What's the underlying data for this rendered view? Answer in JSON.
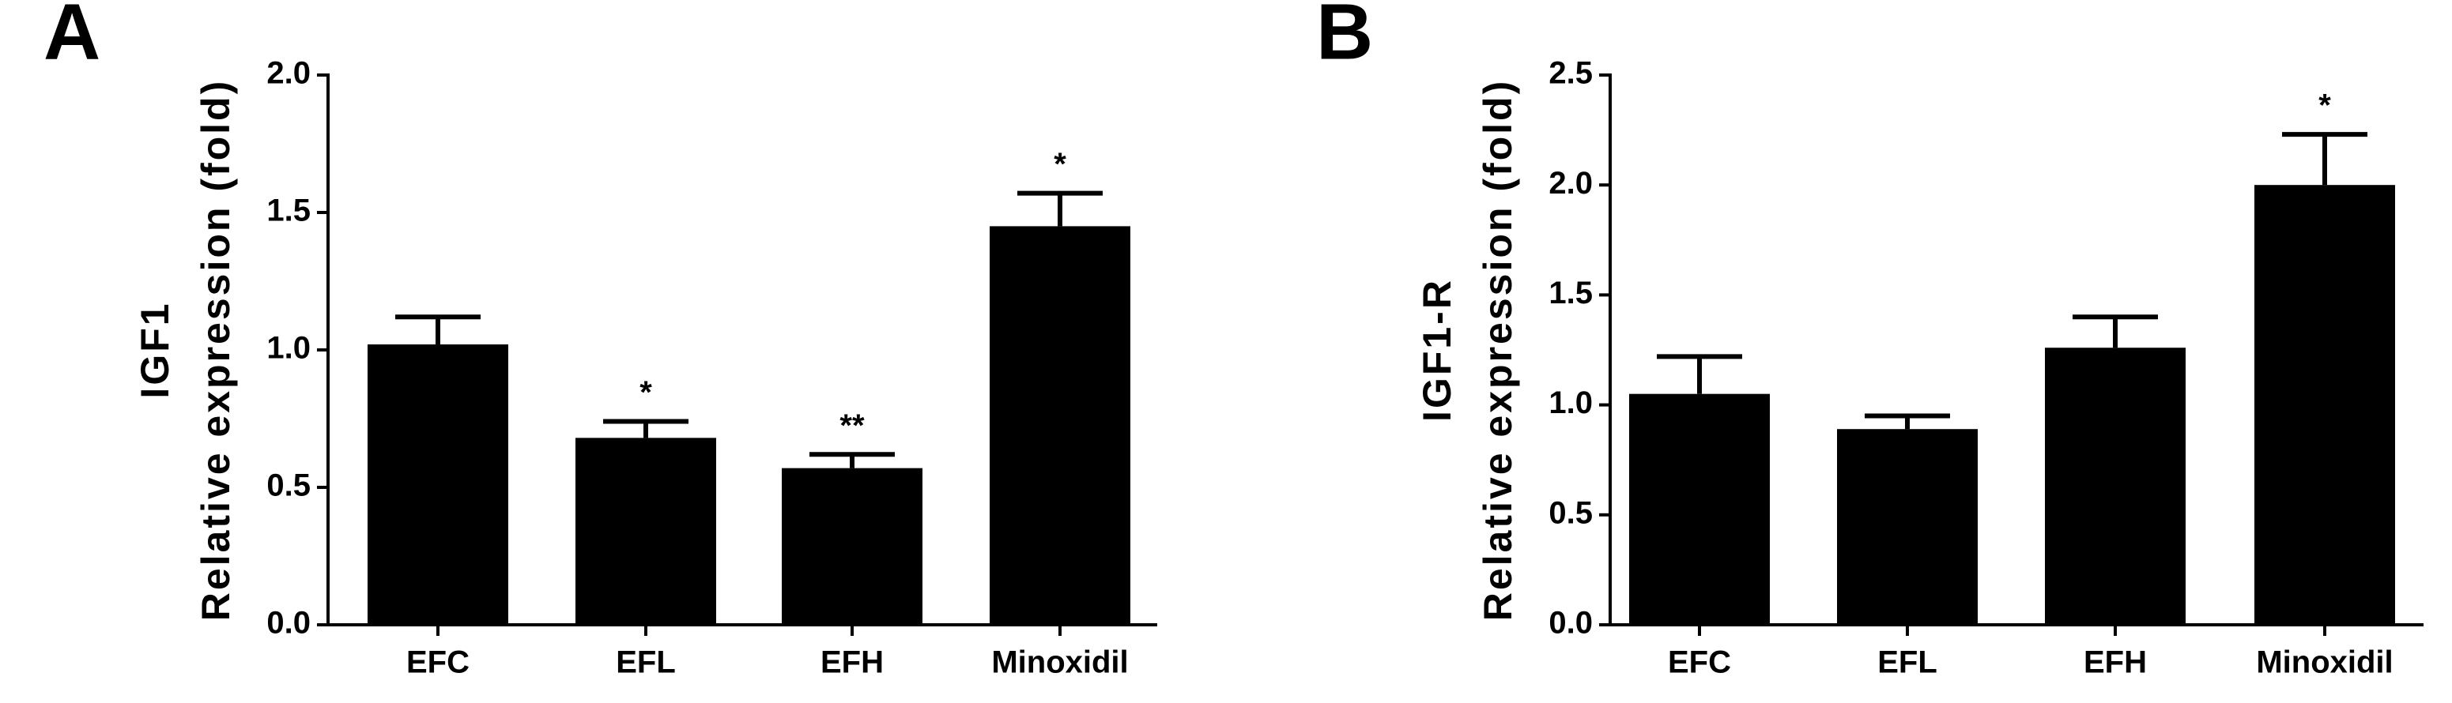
{
  "chart_data": [
    {
      "type": "bar",
      "panel": "A",
      "ylabel": "Relative expression (fold)",
      "ylabel_top": "IGF1",
      "categories": [
        "EFC",
        "EFL",
        "EFH",
        "Minoxidil"
      ],
      "values": [
        1.02,
        0.68,
        0.57,
        1.45
      ],
      "errors": [
        0.1,
        0.06,
        0.05,
        0.12
      ],
      "annotations": [
        null,
        "*",
        "**",
        "*"
      ],
      "color": "#000000",
      "ylim": [
        0,
        2
      ],
      "yticks": [
        {
          "value": 0,
          "label": "0.0"
        },
        {
          "value": 0.5,
          "label": "0.5"
        },
        {
          "value": 1,
          "label": "1.0"
        },
        {
          "value": 1.5,
          "label": "1.5"
        },
        {
          "value": 2,
          "label": "2.0"
        }
      ]
    },
    {
      "type": "bar",
      "panel": "B",
      "ylabel": "Relative expression (fold)",
      "ylabel_top": "IGF1-R",
      "categories": [
        "EFC",
        "EFL",
        "EFH",
        "Minoxidil"
      ],
      "values": [
        1.05,
        0.89,
        1.26,
        2.0
      ],
      "errors": [
        0.17,
        0.06,
        0.14,
        0.23
      ],
      "annotations": [
        null,
        null,
        null,
        "*"
      ],
      "color": "#000000",
      "ylim": [
        0,
        2.5
      ],
      "yticks": [
        {
          "value": 0,
          "label": "0.0"
        },
        {
          "value": 0.5,
          "label": "0.5"
        },
        {
          "value": 1,
          "label": "1.0"
        },
        {
          "value": 1.5,
          "label": "1.5"
        },
        {
          "value": 2,
          "label": "2.0"
        },
        {
          "value": 2.5,
          "label": "2.5"
        }
      ]
    }
  ]
}
